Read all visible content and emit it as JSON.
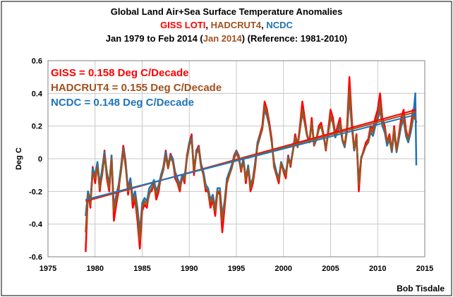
{
  "colors": {
    "giss": "#ff0000",
    "hadcrut4": "#a0521e",
    "ncdc": "#1f74b8",
    "grid": "#c8c8c8"
  },
  "header": {
    "line1": "Global Land Air+Sea Surface Temperature Anomalies",
    "line2_giss": "GISS LOTI",
    "line2_sep1": ", ",
    "line2_had": "HADCRUT4",
    "line2_sep2": ",  ",
    "line2_ncdc": "NCDC",
    "line3_pre": "Jan 1979 to Feb 2014 (",
    "line3_had": "Jan 2014",
    "line3_post": ") (Reference: 1981-2010)"
  },
  "credit": "Bob Tisdale",
  "chart_data": {
    "type": "line",
    "ylabel": "Deg C",
    "xlabel": "",
    "xlim": [
      1975,
      2015
    ],
    "ylim": [
      -0.6,
      0.6
    ],
    "x_ticks": [
      1975,
      1980,
      1985,
      1990,
      1995,
      2000,
      2005,
      2010,
      2015
    ],
    "y_ticks": [
      -0.6,
      -0.4,
      -0.2,
      0,
      0.2,
      0.4,
      0.6
    ],
    "grid": true,
    "annotations": [
      {
        "text": "GISS = 0.158 Deg C/Decade",
        "series": "giss"
      },
      {
        "text": "HADCRUT4 = 0.155 Deg C/Decade",
        "series": "hadcrut4"
      },
      {
        "text": "NCDC = 0.148 Deg C/Decade",
        "series": "ncdc"
      }
    ],
    "trends": [
      {
        "series": "giss",
        "x": [
          1979.0,
          2014.1
        ],
        "y": [
          -0.26,
          0.3
        ]
      },
      {
        "series": "hadcrut4",
        "x": [
          1979.0,
          2014.0
        ],
        "y": [
          -0.255,
          0.285
        ]
      },
      {
        "series": "ncdc",
        "x": [
          1979.0,
          2014.1
        ],
        "y": [
          -0.25,
          0.27
        ]
      }
    ],
    "series": [
      {
        "key": "giss",
        "x": [
          1979.0,
          1979.25,
          1979.5,
          1979.75,
          1980.0,
          1980.25,
          1980.5,
          1980.75,
          1981.0,
          1981.25,
          1981.5,
          1981.75,
          1982.0,
          1982.25,
          1982.5,
          1982.75,
          1983.0,
          1983.25,
          1983.5,
          1983.75,
          1984.0,
          1984.25,
          1984.5,
          1984.75,
          1985.0,
          1985.25,
          1985.5,
          1985.75,
          1986.0,
          1986.25,
          1986.5,
          1986.75,
          1987.0,
          1987.25,
          1987.5,
          1987.75,
          1988.0,
          1988.25,
          1988.5,
          1988.75,
          1989.0,
          1989.25,
          1989.5,
          1989.75,
          1990.0,
          1990.25,
          1990.5,
          1990.75,
          1991.0,
          1991.25,
          1991.5,
          1991.75,
          1992.0,
          1992.25,
          1992.5,
          1992.75,
          1993.0,
          1993.25,
          1993.5,
          1993.75,
          1994.0,
          1994.25,
          1994.5,
          1994.75,
          1995.0,
          1995.25,
          1995.5,
          1995.75,
          1996.0,
          1996.25,
          1996.5,
          1996.75,
          1997.0,
          1997.25,
          1997.5,
          1997.75,
          1998.0,
          1998.25,
          1998.5,
          1998.75,
          1999.0,
          1999.25,
          1999.5,
          1999.75,
          2000.0,
          2000.25,
          2000.5,
          2000.75,
          2001.0,
          2001.25,
          2001.5,
          2001.75,
          2002.0,
          2002.25,
          2002.5,
          2002.75,
          2003.0,
          2003.25,
          2003.5,
          2003.75,
          2004.0,
          2004.25,
          2004.5,
          2004.75,
          2005.0,
          2005.25,
          2005.5,
          2005.75,
          2006.0,
          2006.25,
          2006.5,
          2006.75,
          2007.0,
          2007.25,
          2007.5,
          2007.75,
          2008.0,
          2008.25,
          2008.5,
          2008.75,
          2009.0,
          2009.25,
          2009.5,
          2009.75,
          2010.0,
          2010.25,
          2010.5,
          2010.75,
          2011.0,
          2011.25,
          2011.5,
          2011.75,
          2012.0,
          2012.25,
          2012.5,
          2012.75,
          2013.0,
          2013.25,
          2013.5,
          2013.75,
          2014.0,
          2014.1
        ],
        "values": [
          -0.57,
          -0.2,
          -0.3,
          -0.05,
          -0.15,
          -0.03,
          -0.2,
          -0.08,
          0.05,
          -0.12,
          -0.2,
          0.02,
          -0.38,
          -0.28,
          -0.2,
          -0.05,
          0.08,
          -0.02,
          -0.22,
          -0.12,
          -0.3,
          -0.25,
          -0.38,
          -0.55,
          -0.32,
          -0.28,
          -0.3,
          -0.2,
          -0.2,
          -0.15,
          -0.25,
          -0.2,
          -0.1,
          -0.05,
          0.05,
          -0.05,
          0.03,
          0.0,
          -0.12,
          -0.15,
          -0.2,
          -0.1,
          -0.15,
          0.02,
          0.1,
          0.15,
          -0.1,
          0.05,
          0.08,
          -0.03,
          -0.1,
          -0.2,
          -0.2,
          -0.3,
          -0.25,
          -0.35,
          -0.2,
          -0.22,
          -0.45,
          -0.3,
          -0.15,
          -0.1,
          -0.05,
          0.02,
          0.05,
          0.02,
          -0.08,
          0.0,
          -0.15,
          -0.05,
          -0.2,
          -0.15,
          -0.05,
          0.1,
          0.15,
          0.2,
          0.35,
          0.3,
          0.22,
          0.12,
          -0.05,
          -0.1,
          -0.15,
          -0.02,
          -0.08,
          -0.12,
          0.02,
          -0.05,
          0.05,
          0.15,
          0.08,
          0.2,
          0.35,
          0.25,
          0.15,
          0.1,
          0.25,
          0.08,
          0.12,
          0.2,
          0.22,
          0.15,
          0.05,
          0.18,
          0.3,
          0.25,
          0.15,
          0.2,
          0.25,
          0.12,
          0.08,
          0.2,
          0.5,
          0.25,
          0.05,
          0.15,
          -0.2,
          0.0,
          0.05,
          0.1,
          0.12,
          0.2,
          0.18,
          0.25,
          0.3,
          0.4,
          0.25,
          0.2,
          0.1,
          0.15,
          0.05,
          0.2,
          0.05,
          0.15,
          0.25,
          0.3,
          0.18,
          0.12,
          0.2,
          0.3,
          0.25,
          0.22
        ],
        "name": ""
      },
      {
        "key": "hadcrut4",
        "x": [
          1979.0,
          1979.25,
          1979.5,
          1979.75,
          1980.0,
          1980.25,
          1980.5,
          1980.75,
          1981.0,
          1981.25,
          1981.5,
          1981.75,
          1982.0,
          1982.25,
          1982.5,
          1982.75,
          1983.0,
          1983.25,
          1983.5,
          1983.75,
          1984.0,
          1984.25,
          1984.5,
          1984.75,
          1985.0,
          1985.25,
          1985.5,
          1985.75,
          1986.0,
          1986.25,
          1986.5,
          1986.75,
          1987.0,
          1987.25,
          1987.5,
          1987.75,
          1988.0,
          1988.25,
          1988.5,
          1988.75,
          1989.0,
          1989.25,
          1989.5,
          1989.75,
          1990.0,
          1990.25,
          1990.5,
          1990.75,
          1991.0,
          1991.25,
          1991.5,
          1991.75,
          1992.0,
          1992.25,
          1992.5,
          1992.75,
          1993.0,
          1993.25,
          1993.5,
          1993.75,
          1994.0,
          1994.25,
          1994.5,
          1994.75,
          1995.0,
          1995.25,
          1995.5,
          1995.75,
          1996.0,
          1996.25,
          1996.5,
          1996.75,
          1997.0,
          1997.25,
          1997.5,
          1997.75,
          1998.0,
          1998.25,
          1998.5,
          1998.75,
          1999.0,
          1999.25,
          1999.5,
          1999.75,
          2000.0,
          2000.25,
          2000.5,
          2000.75,
          2001.0,
          2001.25,
          2001.5,
          2001.75,
          2002.0,
          2002.25,
          2002.5,
          2002.75,
          2003.0,
          2003.25,
          2003.5,
          2003.75,
          2004.0,
          2004.25,
          2004.5,
          2004.75,
          2005.0,
          2005.25,
          2005.5,
          2005.75,
          2006.0,
          2006.25,
          2006.5,
          2006.75,
          2007.0,
          2007.25,
          2007.5,
          2007.75,
          2008.0,
          2008.25,
          2008.5,
          2008.75,
          2009.0,
          2009.25,
          2009.5,
          2009.75,
          2010.0,
          2010.25,
          2010.5,
          2010.75,
          2011.0,
          2011.25,
          2011.5,
          2011.75,
          2012.0,
          2012.25,
          2012.5,
          2012.75,
          2013.0,
          2013.25,
          2013.5,
          2013.75,
          2014.0
        ],
        "values": [
          -0.45,
          -0.22,
          -0.28,
          -0.08,
          -0.12,
          -0.05,
          -0.18,
          -0.1,
          0.02,
          -0.1,
          -0.18,
          0.0,
          -0.32,
          -0.25,
          -0.18,
          -0.08,
          0.05,
          -0.05,
          -0.2,
          -0.15,
          -0.26,
          -0.23,
          -0.34,
          -0.5,
          -0.3,
          -0.26,
          -0.28,
          -0.22,
          -0.18,
          -0.16,
          -0.22,
          -0.18,
          -0.12,
          -0.07,
          0.02,
          -0.06,
          0.01,
          -0.02,
          -0.1,
          -0.14,
          -0.18,
          -0.12,
          -0.13,
          0.0,
          0.08,
          0.12,
          -0.08,
          0.03,
          0.06,
          -0.05,
          -0.1,
          -0.18,
          -0.2,
          -0.27,
          -0.24,
          -0.32,
          -0.2,
          -0.2,
          -0.38,
          -0.28,
          -0.14,
          -0.1,
          -0.06,
          0.0,
          0.04,
          0.0,
          -0.07,
          -0.02,
          -0.13,
          -0.06,
          -0.18,
          -0.13,
          -0.04,
          0.08,
          0.13,
          0.18,
          0.32,
          0.28,
          0.2,
          0.1,
          -0.04,
          -0.1,
          -0.13,
          -0.03,
          -0.07,
          -0.1,
          0.0,
          -0.04,
          0.04,
          0.13,
          0.07,
          0.18,
          0.3,
          0.22,
          0.14,
          0.1,
          0.22,
          0.08,
          0.12,
          0.18,
          0.2,
          0.14,
          0.06,
          0.16,
          0.26,
          0.22,
          0.14,
          0.18,
          0.22,
          0.12,
          0.08,
          0.18,
          0.42,
          0.22,
          0.06,
          0.13,
          -0.16,
          0.0,
          0.04,
          0.08,
          0.1,
          0.18,
          0.16,
          0.22,
          0.26,
          0.34,
          0.22,
          0.18,
          0.1,
          0.13,
          0.05,
          0.18,
          0.05,
          0.14,
          0.22,
          0.26,
          0.16,
          0.12,
          0.18,
          0.26,
          0.24
        ],
        "name": ""
      },
      {
        "key": "ncdc",
        "x": [
          1979.0,
          1979.25,
          1979.5,
          1979.75,
          1980.0,
          1980.25,
          1980.5,
          1980.75,
          1981.0,
          1981.25,
          1981.5,
          1981.75,
          1982.0,
          1982.25,
          1982.5,
          1982.75,
          1983.0,
          1983.25,
          1983.5,
          1983.75,
          1984.0,
          1984.25,
          1984.5,
          1984.75,
          1985.0,
          1985.25,
          1985.5,
          1985.75,
          1986.0,
          1986.25,
          1986.5,
          1986.75,
          1987.0,
          1987.25,
          1987.5,
          1987.75,
          1988.0,
          1988.25,
          1988.5,
          1988.75,
          1989.0,
          1989.25,
          1989.5,
          1989.75,
          1990.0,
          1990.25,
          1990.5,
          1990.75,
          1991.0,
          1991.25,
          1991.5,
          1991.75,
          1992.0,
          1992.25,
          1992.5,
          1992.75,
          1993.0,
          1993.25,
          1993.5,
          1993.75,
          1994.0,
          1994.25,
          1994.5,
          1994.75,
          1995.0,
          1995.25,
          1995.5,
          1995.75,
          1996.0,
          1996.25,
          1996.5,
          1996.75,
          1997.0,
          1997.25,
          1997.5,
          1997.75,
          1998.0,
          1998.25,
          1998.5,
          1998.75,
          1999.0,
          1999.25,
          1999.5,
          1999.75,
          2000.0,
          2000.25,
          2000.5,
          2000.75,
          2001.0,
          2001.25,
          2001.5,
          2001.75,
          2002.0,
          2002.25,
          2002.5,
          2002.75,
          2003.0,
          2003.25,
          2003.5,
          2003.75,
          2004.0,
          2004.25,
          2004.5,
          2004.75,
          2005.0,
          2005.25,
          2005.5,
          2005.75,
          2006.0,
          2006.25,
          2006.5,
          2006.75,
          2007.0,
          2007.25,
          2007.5,
          2007.75,
          2008.0,
          2008.25,
          2008.5,
          2008.75,
          2009.0,
          2009.25,
          2009.5,
          2009.75,
          2010.0,
          2010.25,
          2010.5,
          2010.75,
          2011.0,
          2011.25,
          2011.5,
          2011.75,
          2012.0,
          2012.25,
          2012.5,
          2012.75,
          2013.0,
          2013.25,
          2013.5,
          2013.75,
          2014.0,
          2014.1
        ],
        "values": [
          -0.35,
          -0.2,
          -0.26,
          -0.06,
          -0.1,
          -0.02,
          -0.16,
          -0.06,
          0.04,
          -0.08,
          -0.16,
          0.02,
          -0.3,
          -0.22,
          -0.16,
          -0.05,
          0.06,
          -0.03,
          -0.18,
          -0.12,
          -0.24,
          -0.2,
          -0.3,
          -0.45,
          -0.27,
          -0.24,
          -0.26,
          -0.18,
          -0.16,
          -0.13,
          -0.2,
          -0.16,
          -0.1,
          -0.05,
          0.04,
          -0.04,
          0.02,
          0.0,
          -0.08,
          -0.12,
          -0.16,
          -0.1,
          -0.11,
          0.01,
          0.1,
          0.13,
          -0.06,
          0.04,
          0.07,
          -0.03,
          -0.08,
          -0.16,
          -0.18,
          -0.25,
          -0.22,
          -0.3,
          -0.18,
          -0.18,
          -0.35,
          -0.26,
          -0.12,
          -0.08,
          -0.04,
          0.01,
          0.05,
          0.01,
          -0.06,
          0.0,
          -0.12,
          -0.04,
          -0.16,
          -0.12,
          -0.02,
          0.1,
          0.14,
          0.18,
          0.3,
          0.26,
          0.2,
          0.1,
          -0.02,
          -0.08,
          -0.12,
          -0.02,
          -0.06,
          -0.09,
          0.01,
          -0.03,
          0.05,
          0.13,
          0.08,
          0.18,
          0.28,
          0.22,
          0.14,
          0.1,
          0.22,
          0.09,
          0.12,
          0.18,
          0.2,
          0.14,
          0.06,
          0.16,
          0.25,
          0.22,
          0.13,
          0.17,
          0.2,
          0.11,
          0.07,
          0.17,
          0.38,
          0.2,
          0.05,
          0.12,
          -0.14,
          0.01,
          0.04,
          0.08,
          0.1,
          0.16,
          0.14,
          0.2,
          0.24,
          0.3,
          0.2,
          0.16,
          0.08,
          0.12,
          0.04,
          0.16,
          0.04,
          0.12,
          0.2,
          0.24,
          0.14,
          0.1,
          0.16,
          0.24,
          0.4,
          -0.04
        ],
        "name": ""
      }
    ]
  }
}
